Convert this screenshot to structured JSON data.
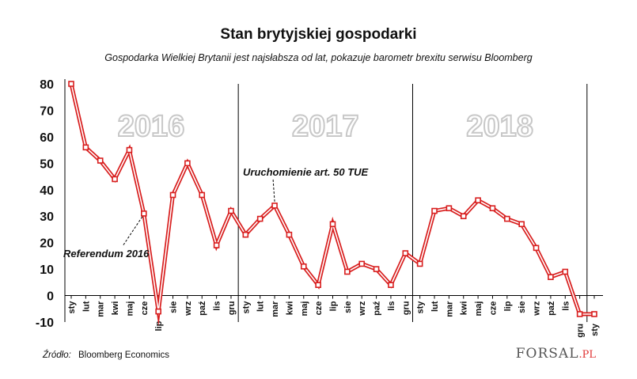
{
  "title": "Stan brytyjskiej gospodarki",
  "subtitle": "Gospodarka Wielkiej Brytanii jest najsłabsza od lat, pokazuje barometr brexitu serwisu Bloomberg",
  "source_label": "Źródło:",
  "source_value": "Bloomberg Economics",
  "brand": {
    "main": "FORSAL",
    "suffix": ".PL"
  },
  "colors": {
    "line": "#d81e1e",
    "axis": "#000000",
    "year_label": "#c8c8c8"
  },
  "chart_data": {
    "type": "line",
    "title": "Stan brytyjskiej gospodarki",
    "ylim": [
      -10,
      80
    ],
    "yticks": [
      -10,
      0,
      10,
      20,
      30,
      40,
      50,
      60,
      70,
      80
    ],
    "categories": [
      "sty",
      "lut",
      "mar",
      "kwi",
      "maj",
      "cze",
      "lip",
      "sie",
      "wrz",
      "paź",
      "lis",
      "gru",
      "sty",
      "lut",
      "mar",
      "kwi",
      "maj",
      "cze",
      "lip",
      "sie",
      "wrz",
      "paź",
      "lis",
      "gru",
      "sty",
      "lut",
      "mar",
      "kwi",
      "maj",
      "cze",
      "lip",
      "sie",
      "wrz",
      "paź",
      "lis",
      "gru",
      "sty"
    ],
    "values": [
      80,
      56,
      51,
      44,
      55,
      31,
      -6,
      38,
      50,
      38,
      19,
      32,
      23,
      29,
      34,
      23,
      11,
      4,
      27,
      9,
      12,
      10,
      4,
      16,
      12,
      32,
      33,
      30,
      36,
      33,
      29,
      27,
      18,
      7,
      9,
      -7,
      -7
    ],
    "years": [
      "2016",
      "2017",
      "2018"
    ],
    "annotations": [
      {
        "text": "Referendum 2016",
        "index": 5
      },
      {
        "text": "Uruchomienie art. 50 TUE",
        "index": 14
      }
    ]
  }
}
